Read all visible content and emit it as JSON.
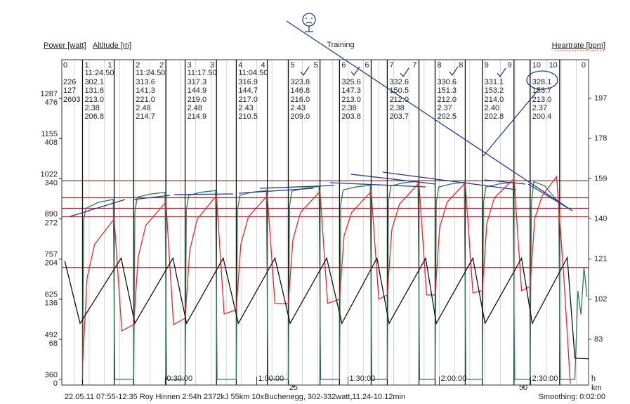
{
  "chart_data": {
    "type": "line",
    "title": "Training",
    "x_label": "h",
    "x2_label": "km",
    "xlim": [
      -4,
      169
    ],
    "xticks": [
      {
        "value": 30,
        "label": "0:30:00"
      },
      {
        "value": 60,
        "label": "1:00:00"
      },
      {
        "value": 90,
        "label": "1:30:00"
      },
      {
        "value": 120,
        "label": "2:00:00"
      },
      {
        "value": 150,
        "label": "2:30:00"
      }
    ],
    "x_minor_grid": 5,
    "x2lim": [
      -0.2,
      57.1
    ],
    "x2ticks": [
      25,
      50
    ],
    "ylim": [
      -9.5,
      541.7
    ],
    "yticks": [
      0,
      68,
      136,
      204,
      272,
      340,
      408,
      476
    ],
    "y2lim": [
      61.4,
      215.3
    ],
    "y2ticks": [
      83,
      102,
      121,
      140,
      159,
      178,
      197
    ],
    "y3lim": [
      341.5,
      1414.5
    ],
    "y3ticks": [
      360,
      492,
      625,
      757,
      890,
      1022,
      1155,
      1287
    ],
    "reference_lines": {
      "axis": "y2",
      "color": "#9b2a35",
      "values": [
        158,
        150,
        145,
        141,
        117
      ]
    },
    "series": [
      {
        "name": "Power [watt]",
        "color": "#2f7a58",
        "axis": "y",
        "x": [
          2.8,
          3.2,
          4.0,
          8.0,
          12.9,
          13.4,
          19.6,
          20.0,
          20.8,
          25,
          29.9,
          30.4,
          36.5,
          36.9,
          37.7,
          41.6,
          46.5,
          47.0,
          53.3,
          53.7,
          54.5,
          58.4,
          63.2,
          63.7,
          70.4,
          70.8,
          71.6,
          75.6,
          80.5,
          81.0,
          87.2,
          87.6,
          88.4,
          92.4,
          97.3,
          97.8,
          102.9,
          103.3,
          104.1,
          108.1,
          113.0,
          113.5,
          118.6,
          119.0,
          119.8,
          123.6,
          128.2,
          128.7,
          134.1,
          134.5,
          135.3,
          139.3,
          144.2,
          144.7,
          149.8,
          150.2,
          151.0,
          154.6,
          159.2,
          159.7,
          164.5,
          165.5,
          166.5,
          167.5,
          168.5
        ],
        "values": [
          0,
          272,
          290,
          300,
          305,
          0,
          0,
          284,
          309,
          314,
          317,
          0,
          0,
          287,
          312,
          317,
          320,
          0,
          0,
          287,
          312,
          317,
          320,
          0,
          0,
          294,
          319,
          324,
          327,
          0,
          0,
          296,
          321,
          326,
          329,
          0,
          0,
          303,
          328,
          333,
          336,
          0,
          0,
          301,
          326,
          331,
          334,
          0,
          0,
          301,
          326,
          331,
          334,
          0,
          0,
          298,
          335,
          328,
          300,
          0,
          0,
          150,
          110,
          190,
          140
        ]
      },
      {
        "name": "Heartrate [bpm]",
        "color": "#e02a2a",
        "axis": "y2",
        "x": [
          2.8,
          4.3,
          6.8,
          13.2,
          15.7,
          19.6,
          21.1,
          23.6,
          30.2,
          32.7,
          36.5,
          38,
          40.5,
          46.8,
          49.3,
          53.3,
          54.8,
          57.3,
          63.5,
          66,
          70.4,
          71.9,
          74.4,
          80.8,
          83.3,
          87.2,
          88.7,
          91.2,
          97.6,
          100.1,
          102.9,
          104.4,
          106.9,
          113.3,
          115.8,
          118.6,
          120.1,
          122.6,
          128.5,
          131,
          134.1,
          135.6,
          138.1,
          144.5,
          147,
          149.8,
          151.3,
          153.8,
          158.5,
          161,
          163
        ],
        "values": [
          70,
          112,
          128,
          140,
          87,
          90,
          122,
          137,
          148,
          90,
          93,
          125,
          140,
          151,
          95,
          97,
          128,
          141,
          151,
          100,
          100,
          130,
          143,
          153,
          100,
          102,
          132,
          143,
          153,
          102,
          104,
          135,
          147,
          157,
          104,
          104,
          136,
          148,
          157,
          105,
          106,
          138,
          150,
          159,
          106,
          108,
          140,
          151,
          160,
          110,
          62
        ]
      },
      {
        "name": "Altitude [m]",
        "color": "#111111",
        "axis": "y3",
        "x": [
          -3,
          2,
          15.5,
          20,
          32.5,
          37,
          49,
          54,
          66,
          71,
          83,
          88,
          99.5,
          103.5,
          115.5,
          119,
          131,
          135,
          147,
          150.5,
          162,
          164.5,
          169
        ],
        "values": [
          750,
          545,
          760,
          545,
          760,
          545,
          760,
          545,
          760,
          545,
          760,
          545,
          760,
          545,
          760,
          545,
          760,
          545,
          760,
          545,
          762,
          430,
          428
        ]
      }
    ],
    "summary": {
      "label": 0,
      "power": "226",
      "heartrate": "127",
      "extra": "2603"
    },
    "end_label": 0,
    "intervals": {
      "labels": [
        1,
        2,
        3,
        4,
        5,
        6,
        7,
        8,
        9,
        10
      ],
      "start": [
        2.8,
        19.6,
        36.5,
        53.3,
        70.4,
        87.2,
        102.9,
        118.6,
        134.1,
        149.8
      ],
      "end": [
        13.2,
        30.2,
        46.8,
        63.5,
        80.8,
        97.6,
        113.3,
        128.5,
        144.5,
        159.5
      ],
      "time": [
        "11:24.50",
        "11:24.50",
        "11:17.50",
        "11:04.50",
        null,
        null,
        null,
        null,
        null,
        null
      ],
      "power": [
        "302.1",
        "313.6",
        "317.3",
        "316.9",
        "323.8",
        "325.6",
        "332.6",
        "330.6",
        "331.1",
        "328.1"
      ],
      "heartrate": [
        "131.6",
        "141.3",
        "144.9",
        "144.7",
        "146.8",
        "147.3",
        "150.5",
        "151.3",
        "153.2",
        "153.7"
      ],
      "extra_1": [
        "213.0",
        "221.0",
        "219.0",
        "217.0",
        "216.0",
        "213.0",
        "212.0",
        "212.0",
        "214.0",
        "213.0"
      ],
      "extra_2": [
        "2.38",
        "2.48",
        "2.48",
        "2.43",
        "2.43",
        "2.38",
        "2.38",
        "2.37",
        "2.40",
        "2.37"
      ],
      "extra_3": [
        "206.8",
        "214.7",
        "214.9",
        "210.5",
        "209.0",
        "203.8",
        "203.7",
        "202.5",
        "202.8",
        "200.4"
      ]
    },
    "footer": "22.05.11 07:55-12:35 Roy Hinnen 2:54h 2372kJ 55km 10xBuchenegg, 302-332watt,11.24-10.12min",
    "smoothing": "Smoothing: 0:02:00"
  }
}
